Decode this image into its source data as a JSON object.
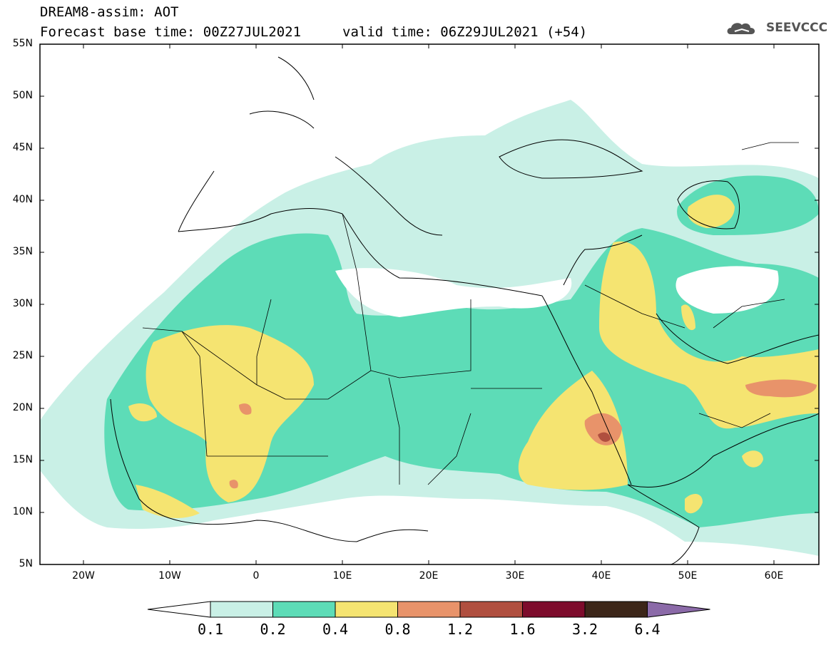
{
  "header": {
    "title": "DREAM8-assim: AOT",
    "base_time": "Forecast base time: 00Z27JUL2021",
    "valid_time": "valid time: 06Z29JUL2021 (+54)",
    "logo_text": "SEEVCCC"
  },
  "map": {
    "lat_labels": [
      "55N",
      "50N",
      "45N",
      "40N",
      "35N",
      "30N",
      "25N",
      "20N",
      "15N",
      "10N",
      "5N"
    ],
    "lon_labels": [
      "20W",
      "10W",
      "0",
      "10E",
      "20E",
      "30E",
      "40E",
      "50E",
      "60E"
    ],
    "colors": {
      "land_bg": "#ffffff",
      "border": "#000000"
    }
  },
  "colorbar": {
    "labels": [
      "0.1",
      "0.2",
      "0.4",
      "0.8",
      "1.2",
      "1.6",
      "3.2",
      "6.4"
    ],
    "colors": [
      "#ffffff",
      "#c9f0e6",
      "#5ddcb7",
      "#f5e471",
      "#e8936a",
      "#b04f3f",
      "#7d0c2c",
      "#3c2619",
      "#8b6aa8"
    ]
  }
}
